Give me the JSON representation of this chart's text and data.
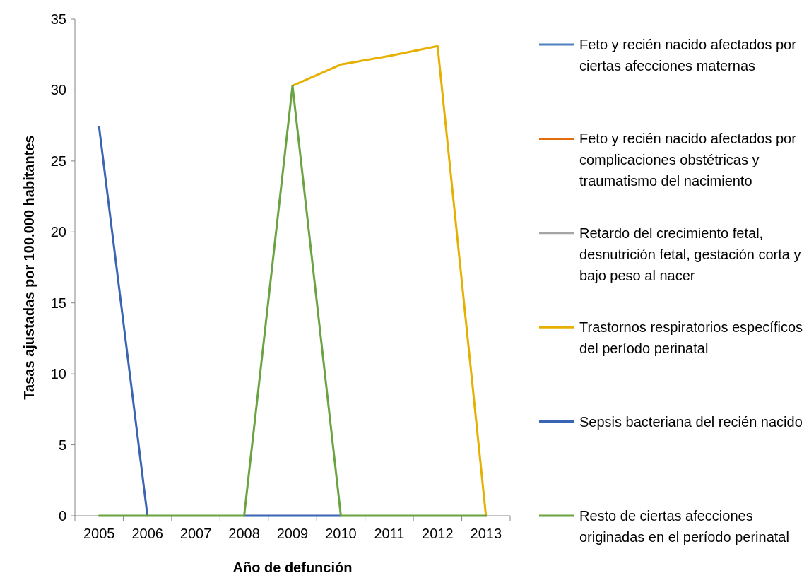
{
  "chart_data": {
    "type": "line",
    "xlabel": "Año de defunción",
    "ylabel": "Tasas ajustadas por 100.000 habitantes",
    "categories": [
      "2005",
      "2006",
      "2007",
      "2008",
      "2009",
      "2010",
      "2011",
      "2012",
      "2013"
    ],
    "ylim": [
      0,
      35
    ],
    "yticks": [
      0,
      5,
      10,
      15,
      20,
      25,
      30,
      35
    ],
    "grid": false,
    "legend": "right",
    "marker": "none",
    "line_style": "solid",
    "series": [
      {
        "name": "Feto y recién nacido afectados por ciertas afecciones maternas",
        "color": "#4f81bd",
        "values": [
          null,
          null,
          null,
          null,
          null,
          null,
          null,
          null,
          null
        ]
      },
      {
        "name": "Feto y recién nacido afectados por complicaciones obstétricas y traumatismo del nacimiento",
        "color": "#e46c0a",
        "values": [
          null,
          null,
          null,
          null,
          null,
          null,
          null,
          null,
          null
        ]
      },
      {
        "name": "Retardo del crecimiento fetal, desnutrición fetal, gestación corta y bajo peso al nacer",
        "color": "#a5a5a5",
        "values": [
          null,
          null,
          null,
          null,
          null,
          null,
          null,
          null,
          null
        ]
      },
      {
        "name": "Trastornos respiratorios específicos del período perinatal",
        "color": "#e6b000",
        "values": [
          null,
          null,
          null,
          null,
          30.3,
          31.8,
          32.4,
          33.1,
          0
        ]
      },
      {
        "name": "Sepsis bacteriana del recién nacido",
        "color": "#3a64b4",
        "values": [
          27.4,
          0,
          null,
          0,
          0,
          0,
          null,
          null,
          null
        ]
      },
      {
        "name": "Resto de ciertas afecciones originadas en el período perinatal",
        "color": "#6aa342",
        "values": [
          0,
          0,
          0,
          0,
          30.3,
          0,
          0,
          0,
          0
        ]
      }
    ]
  }
}
